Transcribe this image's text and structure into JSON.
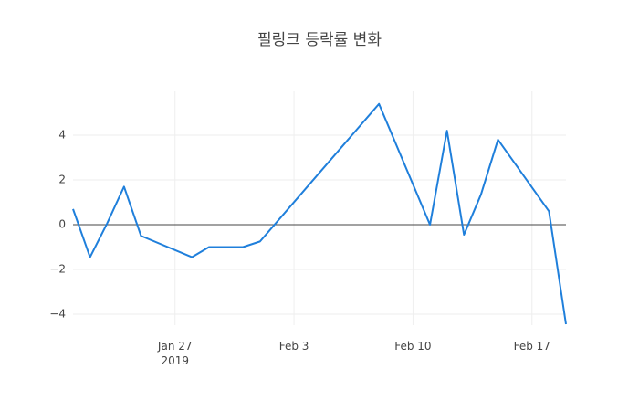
{
  "chart_data": {
    "type": "line",
    "title": "필링크 등락률 변화",
    "x": [
      "2019-01-21",
      "2019-01-22",
      "2019-01-23",
      "2019-01-24",
      "2019-01-25",
      "2019-01-28",
      "2019-01-29",
      "2019-01-31",
      "2019-02-01",
      "2019-02-08",
      "2019-02-11",
      "2019-02-12",
      "2019-02-13",
      "2019-02-14",
      "2019-02-15",
      "2019-02-18",
      "2019-02-19"
    ],
    "series": [
      {
        "color": "#1f7fdb",
        "values": [
          0.7,
          -1.45,
          0.05,
          1.7,
          -0.5,
          -1.45,
          -1.0,
          -1.0,
          -0.75,
          5.4,
          0.0,
          4.2,
          -0.45,
          1.35,
          3.8,
          0.6,
          -4.45
        ]
      }
    ],
    "xlim": [
      "2019-01-21",
      "2019-02-19"
    ],
    "xticks": [
      {
        "value": "2019-01-27",
        "label": "Jan 27\n2019"
      },
      {
        "value": "2019-02-03",
        "label": "Feb 3"
      },
      {
        "value": "2019-02-10",
        "label": "Feb 10"
      },
      {
        "value": "2019-02-17",
        "label": "Feb 17"
      }
    ],
    "ylim": [
      -4.49,
      5.96
    ],
    "yticks": [
      {
        "value": -4,
        "label": "−4"
      },
      {
        "value": -2,
        "label": "−2"
      },
      0,
      2,
      4
    ],
    "grid": true,
    "zeroline": true
  }
}
